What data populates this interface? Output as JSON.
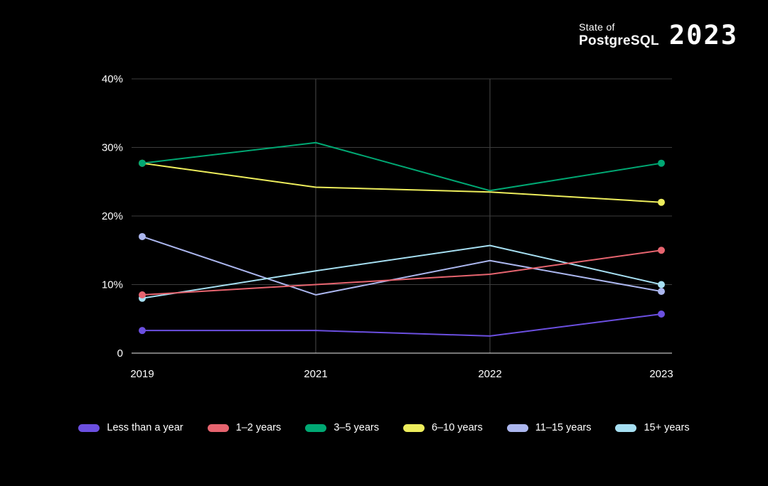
{
  "logo": {
    "line1": "State of",
    "line2": "PostgreSQL",
    "year": "2023"
  },
  "chart_data": {
    "type": "line",
    "categories": [
      "2019",
      "2021",
      "2022",
      "2023"
    ],
    "series": [
      {
        "name": "Less than a year",
        "color": "#6b4fe0",
        "values": [
          3.3,
          3.3,
          2.5,
          5.7
        ]
      },
      {
        "name": "1–2 years",
        "color": "#e6646f",
        "values": [
          8.5,
          10,
          11.5,
          15
        ]
      },
      {
        "name": "3–5 years",
        "color": "#00a873",
        "values": [
          27.7,
          30.7,
          23.7,
          27.7
        ]
      },
      {
        "name": "6–10 years",
        "color": "#eded5c",
        "values": [
          27.7,
          24.2,
          23.5,
          22
        ]
      },
      {
        "name": "11–15 years",
        "color": "#abb6ee",
        "values": [
          17,
          8.5,
          13.5,
          9
        ]
      },
      {
        "name": "15+ years",
        "color": "#a6dff2",
        "values": [
          8,
          12,
          15.7,
          10
        ]
      }
    ],
    "ylim": [
      0,
      40
    ],
    "yticks": [
      0,
      10,
      20,
      30,
      40
    ],
    "ytick_labels": [
      "0",
      "10%",
      "20%",
      "30%",
      "40%"
    ],
    "grid": {
      "horizontal": true,
      "vertical_at": [
        "2021",
        "2022"
      ]
    },
    "legend_position": "bottom",
    "colors": {
      "background": "#000000",
      "gridline": "#3d3d3d",
      "vertical_gridline": "#4a4a4a",
      "axis_line": "#ececec",
      "text": "#ffffff"
    }
  }
}
